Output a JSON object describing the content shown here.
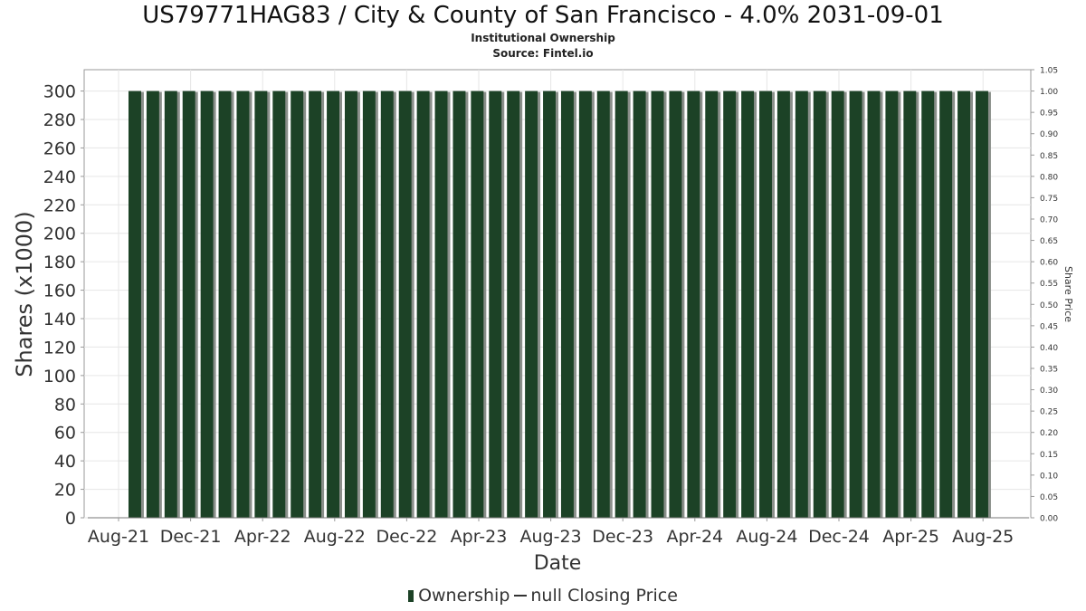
{
  "title": "US79771HAG83 / City & County of San Francisco - 4.0% 2031-09-01",
  "subtitle": "Institutional Ownership",
  "source": "Source: Fintel.io",
  "legend": {
    "ownership": "Ownership",
    "price": "null Closing Price"
  },
  "colors": {
    "bar": "#1c4226",
    "bar_shadow": "#8a8f8a",
    "grid": "#e6e6e6",
    "axis": "#999999"
  },
  "chart_data": {
    "type": "bar",
    "title": "US79771HAG83 / City & County of San Francisco - 4.0% 2031-09-01",
    "xlabel": "Date",
    "ylabel": "Shares (x1000)",
    "y2label": "Share Price",
    "ylim": [
      0,
      315
    ],
    "y2lim": [
      0,
      1.05
    ],
    "yticks": [
      0,
      20,
      40,
      60,
      80,
      100,
      120,
      140,
      160,
      180,
      200,
      220,
      240,
      260,
      280,
      300
    ],
    "y2ticks": [
      "0.00",
      "0.05",
      "0.10",
      "0.15",
      "0.20",
      "0.25",
      "0.30",
      "0.35",
      "0.40",
      "0.45",
      "0.50",
      "0.55",
      "0.60",
      "0.65",
      "0.70",
      "0.75",
      "0.80",
      "0.85",
      "0.90",
      "0.95",
      "1.00",
      "1.05"
    ],
    "xticks": [
      "Aug-21",
      "Dec-21",
      "Apr-22",
      "Aug-22",
      "Dec-22",
      "Apr-23",
      "Aug-23",
      "Dec-23",
      "Apr-24",
      "Aug-24",
      "Dec-24",
      "Apr-25",
      "Aug-25"
    ],
    "grid": true,
    "series": [
      {
        "name": "Ownership",
        "values": [
          300,
          300,
          300,
          300,
          300,
          300,
          300,
          300,
          300,
          300,
          300,
          300,
          300,
          300,
          300,
          300,
          300,
          300,
          300,
          300,
          300,
          300,
          300,
          300,
          300,
          300,
          300,
          300,
          300,
          300,
          300,
          300,
          300,
          300,
          300,
          300,
          300,
          300,
          300,
          300,
          300,
          300,
          300,
          300,
          300,
          300,
          300,
          300
        ]
      }
    ]
  }
}
